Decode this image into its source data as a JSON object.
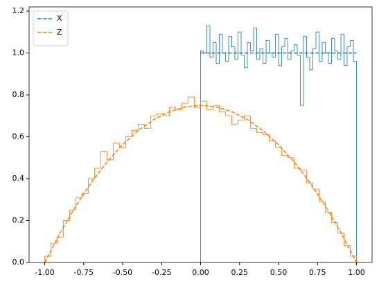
{
  "chart_data": {
    "type": "histogram",
    "xlim": [
      -1.1,
      1.1
    ],
    "ylim": [
      0,
      1.22
    ],
    "xticks": [
      {
        "value": -1,
        "label": "-1.00"
      },
      {
        "value": -0.75,
        "label": "-0.75"
      },
      {
        "value": -0.5,
        "label": "-0.50"
      },
      {
        "value": -0.25,
        "label": "-0.25"
      },
      {
        "value": 0,
        "label": "0.00"
      },
      {
        "value": 0.25,
        "label": "0.25"
      },
      {
        "value": 0.5,
        "label": "0.50"
      },
      {
        "value": 0.75,
        "label": "0.75"
      },
      {
        "value": 1,
        "label": "1.00"
      }
    ],
    "yticks": [
      {
        "value": 0,
        "label": "0.0"
      },
      {
        "value": 0.2,
        "label": "0.2"
      },
      {
        "value": 0.4,
        "label": "0.4"
      },
      {
        "value": 0.6,
        "label": "0.6"
      },
      {
        "value": 0.8,
        "label": "0.8"
      },
      {
        "value": 1,
        "label": "1.0"
      },
      {
        "value": 1.2,
        "label": "1.2"
      }
    ],
    "legend": "upper left",
    "lines": [
      {
        "name": "X",
        "color": "#1f77b4",
        "x": [
          0,
          1
        ],
        "y": [
          1,
          1
        ]
      },
      {
        "name": "Z",
        "color": "#ff7f0e",
        "x": [
          -1,
          -0.9,
          -0.8,
          -0.7,
          -0.6,
          -0.5,
          -0.4,
          -0.3,
          -0.2,
          -0.1,
          0,
          0.1,
          0.2,
          0.3,
          0.4,
          0.5,
          0.6,
          0.7,
          0.8,
          0.9,
          1
        ],
        "y": [
          0,
          0.1425,
          0.27,
          0.3825,
          0.48,
          0.5625,
          0.63,
          0.6825,
          0.72,
          0.7425,
          0.75,
          0.7425,
          0.72,
          0.6825,
          0.63,
          0.5625,
          0.48,
          0.3825,
          0.27,
          0.1425,
          0
        ]
      }
    ],
    "histograms": [
      {
        "color": "#1f77b4",
        "bins": [
          0,
          0.02,
          0.04,
          0.06,
          0.08,
          0.1,
          0.12,
          0.14,
          0.16,
          0.18,
          0.2,
          0.22,
          0.24,
          0.26,
          0.28,
          0.3,
          0.32,
          0.34,
          0.36,
          0.38,
          0.4,
          0.42,
          0.44,
          0.46,
          0.48,
          0.5,
          0.52,
          0.54,
          0.56,
          0.58,
          0.6,
          0.62,
          0.64,
          0.66,
          0.68,
          0.7,
          0.72,
          0.74,
          0.76,
          0.78,
          0.8,
          0.82,
          0.84,
          0.86,
          0.88,
          0.9,
          0.92,
          0.94,
          0.96,
          0.98,
          1
        ],
        "values": [
          1.01,
          1.0,
          1.13,
          0.98,
          1.05,
          0.95,
          1.09,
          1.0,
          0.96,
          1.08,
          1.03,
          0.97,
          1.1,
          0.99,
          0.93,
          1.05,
          1.01,
          1.12,
          0.97,
          1.02,
          0.95,
          1.06,
          1.0,
          0.98,
          1.09,
          0.94,
          1.03,
          1.07,
          0.97,
          1.01,
          1.04,
          0.99,
          0.75,
          1.08,
          0.98,
          0.92,
          1.02,
          1.1,
          0.96,
          1.05,
          1.0,
          0.95,
          1.07,
          1.01,
          0.97,
          1.09,
          0.94,
          1.03,
          1.06,
          0.96
        ]
      },
      {
        "color": "#ff7f0e",
        "bins": [
          -1,
          -0.96,
          -0.92,
          -0.88,
          -0.84,
          -0.8,
          -0.76,
          -0.72,
          -0.68,
          -0.64,
          -0.6,
          -0.56,
          -0.52,
          -0.48,
          -0.44,
          -0.4,
          -0.36,
          -0.32,
          -0.28,
          -0.24,
          -0.2,
          -0.16,
          -0.12,
          -0.08,
          -0.04,
          0,
          0.04,
          0.08,
          0.12,
          0.16,
          0.2,
          0.24,
          0.28,
          0.32,
          0.36,
          0.4,
          0.44,
          0.48,
          0.52,
          0.56,
          0.6,
          0.64,
          0.68,
          0.72,
          0.76,
          0.8,
          0.84,
          0.88,
          0.92,
          0.96,
          1
        ],
        "values": [
          0.03,
          0.09,
          0.12,
          0.2,
          0.25,
          0.31,
          0.33,
          0.4,
          0.45,
          0.53,
          0.49,
          0.57,
          0.55,
          0.6,
          0.63,
          0.66,
          0.64,
          0.7,
          0.71,
          0.7,
          0.74,
          0.73,
          0.76,
          0.79,
          0.74,
          0.77,
          0.73,
          0.75,
          0.72,
          0.7,
          0.66,
          0.68,
          0.7,
          0.64,
          0.62,
          0.61,
          0.58,
          0.55,
          0.51,
          0.5,
          0.45,
          0.44,
          0.38,
          0.35,
          0.29,
          0.24,
          0.19,
          0.14,
          0.08,
          0.03
        ]
      }
    ]
  }
}
